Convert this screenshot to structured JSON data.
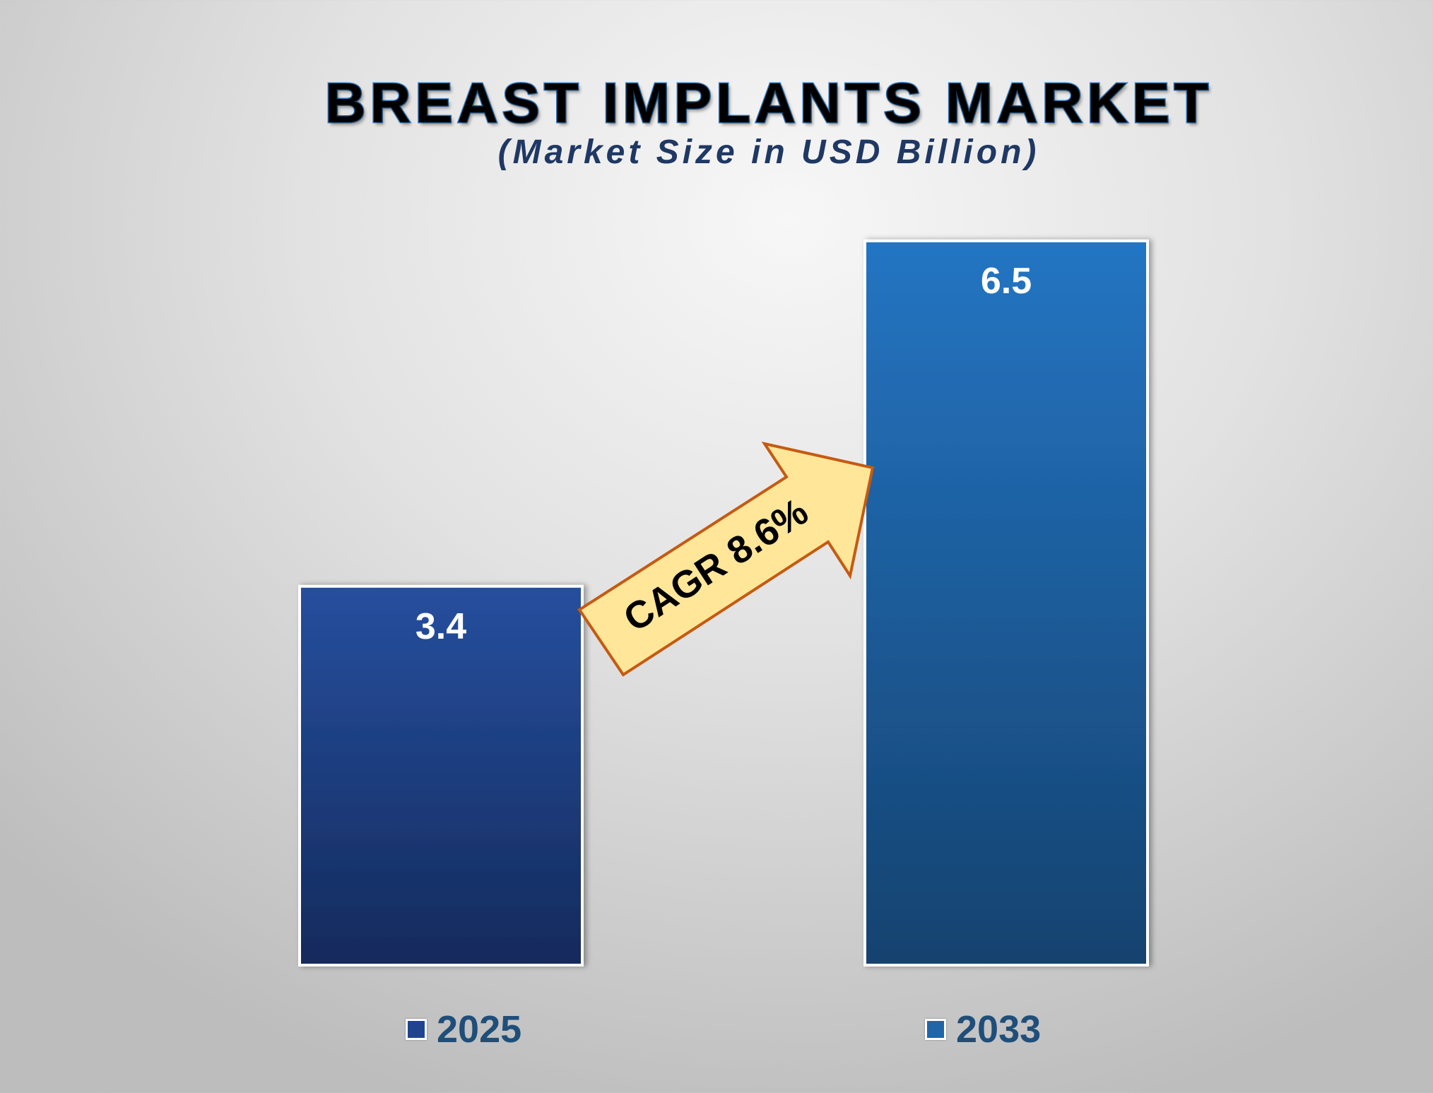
{
  "chart_data": {
    "type": "bar",
    "title": "BREAST IMPLANTS MARKET",
    "subtitle": "(Market Size in USD Billion)",
    "categories": [
      "2025",
      "2033"
    ],
    "values": [
      3.4,
      6.5
    ],
    "value_labels": [
      "3.4",
      "6.5"
    ],
    "colors": [
      "#22448f",
      "#2272bf"
    ],
    "legend": [
      "2025",
      "2033"
    ],
    "legend_position": "bottom",
    "grid": false,
    "annotation": "CAGR 8.6%",
    "annotation_colors": {
      "fill": "#ffe699",
      "stroke": "#c55a11"
    }
  }
}
